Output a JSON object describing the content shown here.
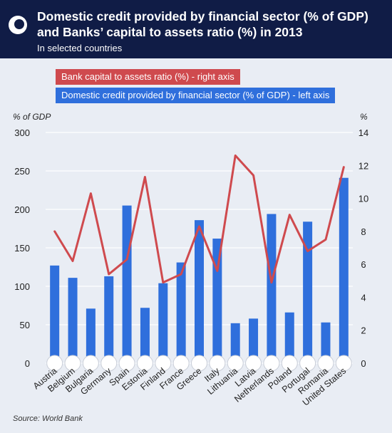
{
  "header": {
    "title": "Domestic credit provided by financial sector (% of GDP) and Banks’ capital to assets ratio (%) in 2013",
    "subtitle": "In selected countries"
  },
  "legend": {
    "red": "Bank capital to assets ratio (%)  - right axis",
    "blue": "Domestic credit provided by financial sector (% of GDP) - left axis"
  },
  "axes": {
    "left_unit": "% of GDP",
    "right_unit": "%"
  },
  "source": "Source: World Bank",
  "colors": {
    "bar": "#2f6fdc",
    "line": "#cf4a4e",
    "header": "#101c46"
  },
  "chart_data": {
    "type": "bar",
    "categories": [
      "Austria",
      "Belgium",
      "Bulgaria",
      "Germany",
      "Spain",
      "Estonia",
      "Finland",
      "France",
      "Greece",
      "Italy",
      "Lithuania",
      "Latvia",
      "Netherlands",
      "Poland",
      "Portugal",
      "Romania",
      "United States"
    ],
    "series": [
      {
        "name": "Domestic credit provided by financial sector (% of GDP) - left axis",
        "type": "bar",
        "axis": "left",
        "values": [
          127,
          111,
          71,
          113,
          205,
          72,
          104,
          131,
          186,
          162,
          52,
          58,
          194,
          66,
          184,
          53,
          241
        ]
      },
      {
        "name": "Bank capital to assets ratio (%)  - right axis",
        "type": "line",
        "axis": "right",
        "values": [
          8.0,
          6.2,
          10.3,
          5.4,
          6.3,
          11.3,
          4.9,
          5.4,
          8.3,
          5.6,
          12.6,
          11.4,
          4.9,
          9.0,
          6.8,
          7.5,
          11.9
        ]
      }
    ],
    "ylim_left": [
      0,
      300
    ],
    "yticks_left": [
      0,
      50,
      100,
      150,
      200,
      250,
      300
    ],
    "ylim_right": [
      0,
      14
    ],
    "yticks_right": [
      0,
      2,
      4,
      6,
      8,
      10,
      12,
      14
    ],
    "grid": true,
    "legend_position": "top-left"
  }
}
